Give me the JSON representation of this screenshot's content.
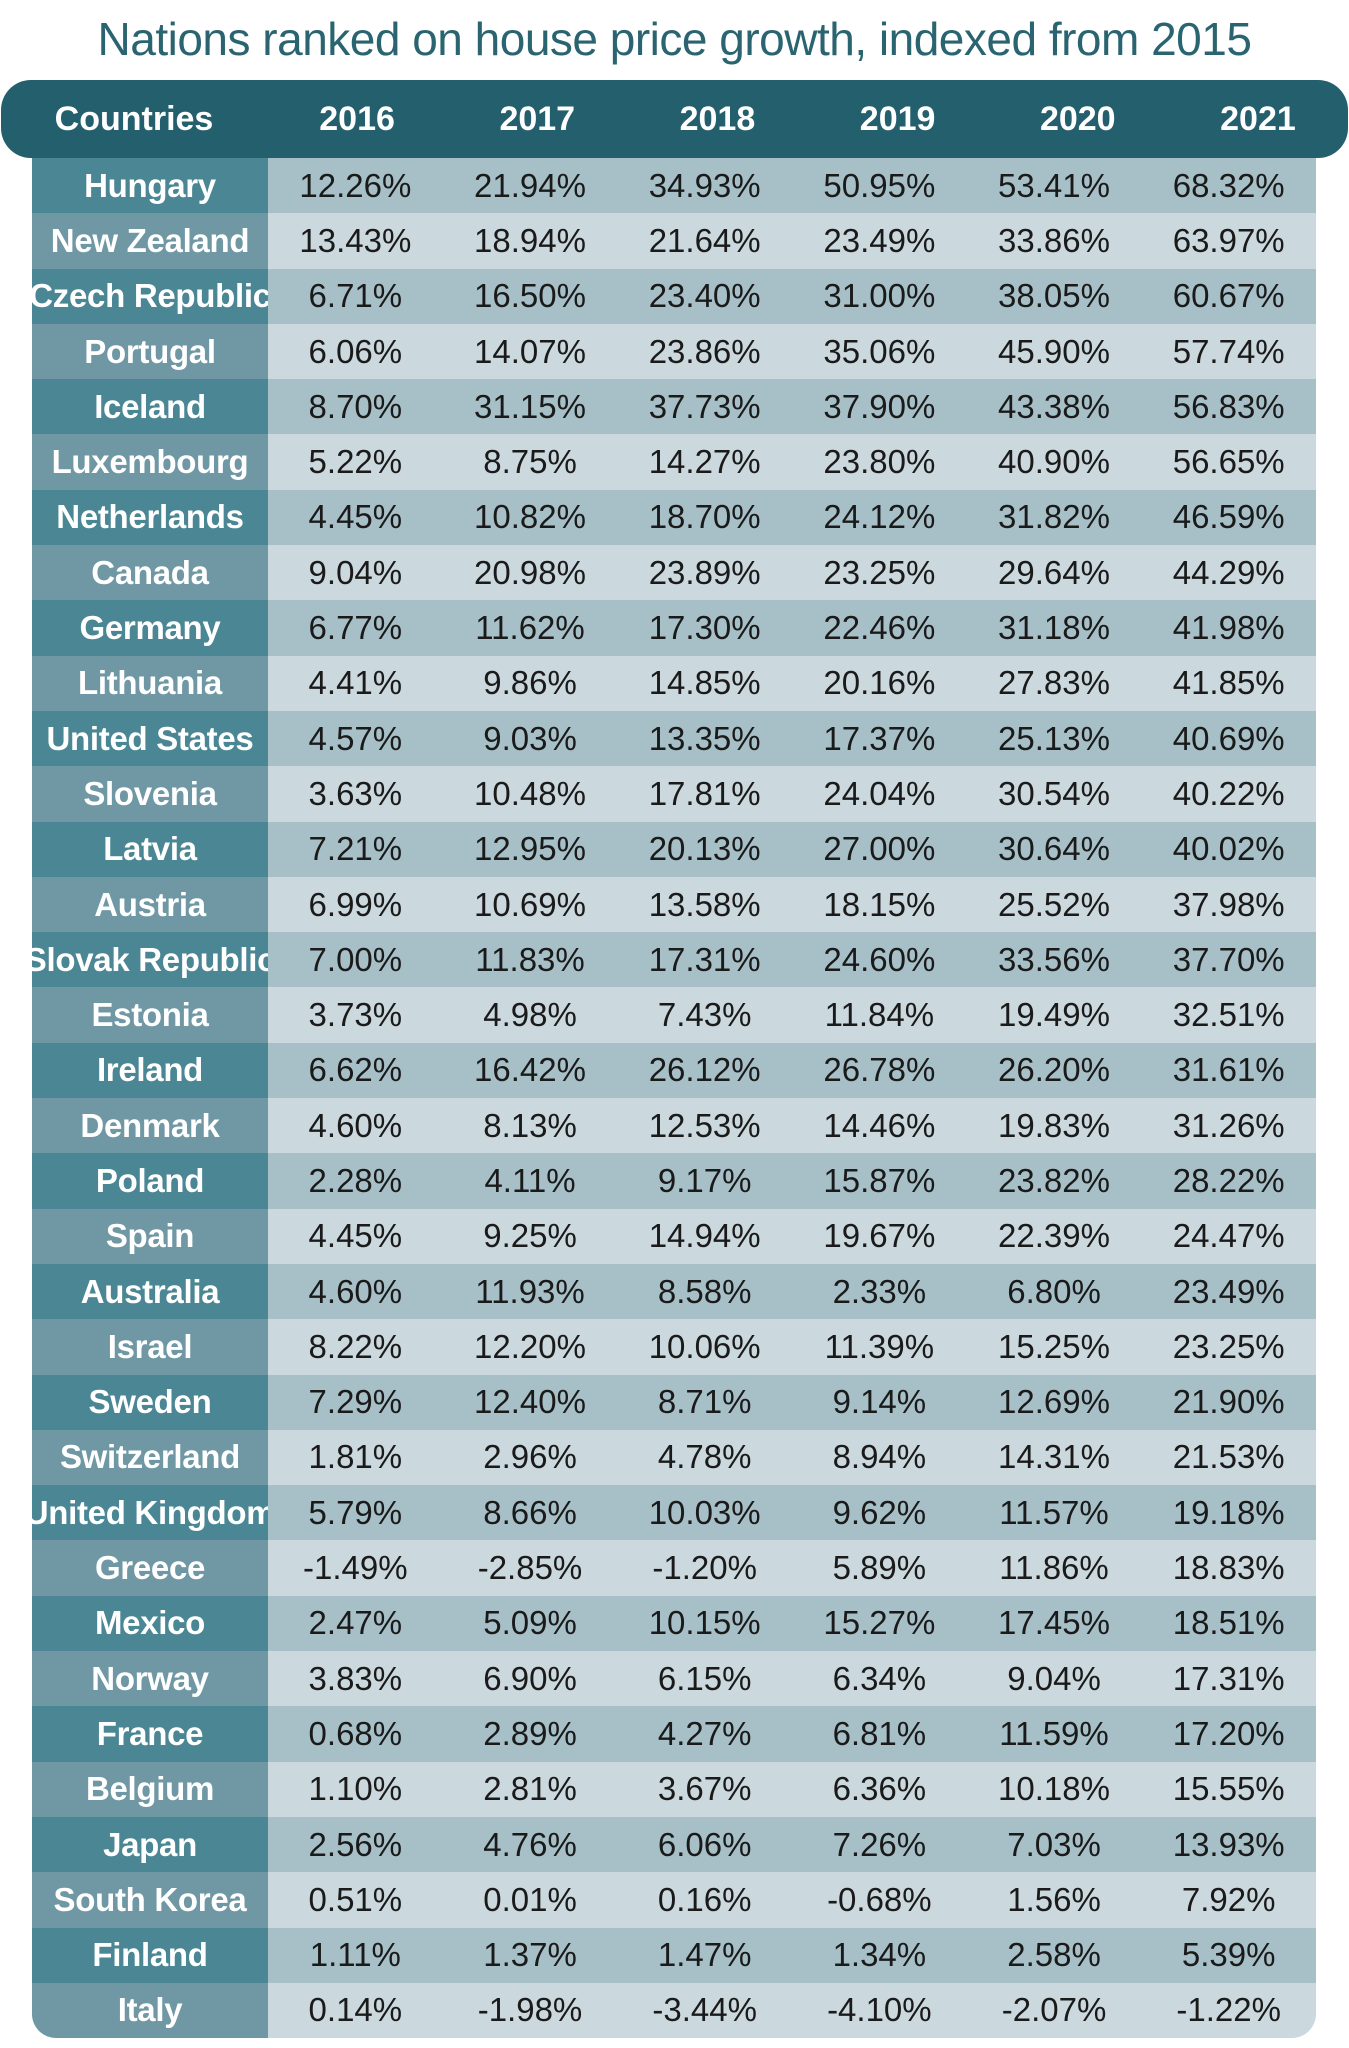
{
  "title": "Nations ranked on house price growth, indexed from 2015",
  "chart_data": {
    "type": "table",
    "title": "Nations ranked on house price growth, indexed from 2015",
    "columns": [
      "Countries",
      "2016",
      "2017",
      "2018",
      "2019",
      "2020",
      "2021"
    ],
    "rows": [
      [
        "Hungary",
        "12.26%",
        "21.94%",
        "34.93%",
        "50.95%",
        "53.41%",
        "68.32%"
      ],
      [
        "New Zealand",
        "13.43%",
        "18.94%",
        "21.64%",
        "23.49%",
        "33.86%",
        "63.97%"
      ],
      [
        "Czech Republic",
        "6.71%",
        "16.50%",
        "23.40%",
        "31.00%",
        "38.05%",
        "60.67%"
      ],
      [
        "Portugal",
        "6.06%",
        "14.07%",
        "23.86%",
        "35.06%",
        "45.90%",
        "57.74%"
      ],
      [
        "Iceland",
        "8.70%",
        "31.15%",
        "37.73%",
        "37.90%",
        "43.38%",
        "56.83%"
      ],
      [
        "Luxembourg",
        "5.22%",
        "8.75%",
        "14.27%",
        "23.80%",
        "40.90%",
        "56.65%"
      ],
      [
        "Netherlands",
        "4.45%",
        "10.82%",
        "18.70%",
        "24.12%",
        "31.82%",
        "46.59%"
      ],
      [
        "Canada",
        "9.04%",
        "20.98%",
        "23.89%",
        "23.25%",
        "29.64%",
        "44.29%"
      ],
      [
        "Germany",
        "6.77%",
        "11.62%",
        "17.30%",
        "22.46%",
        "31.18%",
        "41.98%"
      ],
      [
        "Lithuania",
        "4.41%",
        "9.86%",
        "14.85%",
        "20.16%",
        "27.83%",
        "41.85%"
      ],
      [
        "United States",
        "4.57%",
        "9.03%",
        "13.35%",
        "17.37%",
        "25.13%",
        "40.69%"
      ],
      [
        "Slovenia",
        "3.63%",
        "10.48%",
        "17.81%",
        "24.04%",
        "30.54%",
        "40.22%"
      ],
      [
        "Latvia",
        "7.21%",
        "12.95%",
        "20.13%",
        "27.00%",
        "30.64%",
        "40.02%"
      ],
      [
        "Austria",
        "6.99%",
        "10.69%",
        "13.58%",
        "18.15%",
        "25.52%",
        "37.98%"
      ],
      [
        "Slovak Republic",
        "7.00%",
        "11.83%",
        "17.31%",
        "24.60%",
        "33.56%",
        "37.70%"
      ],
      [
        "Estonia",
        "3.73%",
        "4.98%",
        "7.43%",
        "11.84%",
        "19.49%",
        "32.51%"
      ],
      [
        "Ireland",
        "6.62%",
        "16.42%",
        "26.12%",
        "26.78%",
        "26.20%",
        "31.61%"
      ],
      [
        "Denmark",
        "4.60%",
        "8.13%",
        "12.53%",
        "14.46%",
        "19.83%",
        "31.26%"
      ],
      [
        "Poland",
        "2.28%",
        "4.11%",
        "9.17%",
        "15.87%",
        "23.82%",
        "28.22%"
      ],
      [
        "Spain",
        "4.45%",
        "9.25%",
        "14.94%",
        "19.67%",
        "22.39%",
        "24.47%"
      ],
      [
        "Australia",
        "4.60%",
        "11.93%",
        "8.58%",
        "2.33%",
        "6.80%",
        "23.49%"
      ],
      [
        "Israel",
        "8.22%",
        "12.20%",
        "10.06%",
        "11.39%",
        "15.25%",
        "23.25%"
      ],
      [
        "Sweden",
        "7.29%",
        "12.40%",
        "8.71%",
        "9.14%",
        "12.69%",
        "21.90%"
      ],
      [
        "Switzerland",
        "1.81%",
        "2.96%",
        "4.78%",
        "8.94%",
        "14.31%",
        "21.53%"
      ],
      [
        "United Kingdom",
        "5.79%",
        "8.66%",
        "10.03%",
        "9.62%",
        "11.57%",
        "19.18%"
      ],
      [
        "Greece",
        "-1.49%",
        "-2.85%",
        "-1.20%",
        "5.89%",
        "11.86%",
        "18.83%"
      ],
      [
        "Mexico",
        "2.47%",
        "5.09%",
        "10.15%",
        "15.27%",
        "17.45%",
        "18.51%"
      ],
      [
        "Norway",
        "3.83%",
        "6.90%",
        "6.15%",
        "6.34%",
        "9.04%",
        "17.31%"
      ],
      [
        "France",
        "0.68%",
        "2.89%",
        "4.27%",
        "6.81%",
        "11.59%",
        "17.20%"
      ],
      [
        "Belgium",
        "1.10%",
        "2.81%",
        "3.67%",
        "6.36%",
        "10.18%",
        "15.55%"
      ],
      [
        "Japan",
        "2.56%",
        "4.76%",
        "6.06%",
        "7.26%",
        "7.03%",
        "13.93%"
      ],
      [
        "South Korea",
        "0.51%",
        "0.01%",
        "0.16%",
        "-0.68%",
        "1.56%",
        "7.92%"
      ],
      [
        "Finland",
        "1.11%",
        "1.37%",
        "1.47%",
        "1.34%",
        "2.58%",
        "5.39%"
      ],
      [
        "Italy",
        "0.14%",
        "-1.98%",
        "-3.44%",
        "-4.10%",
        "-2.07%",
        "-1.22%"
      ]
    ]
  },
  "colors": {
    "title": "#2a6470",
    "header": "#245f6d",
    "country_dark": "#4a8693",
    "country_light": "#6f98a4",
    "cell_dark": "#a7c0c8",
    "cell_light": "#cbd8dd"
  }
}
